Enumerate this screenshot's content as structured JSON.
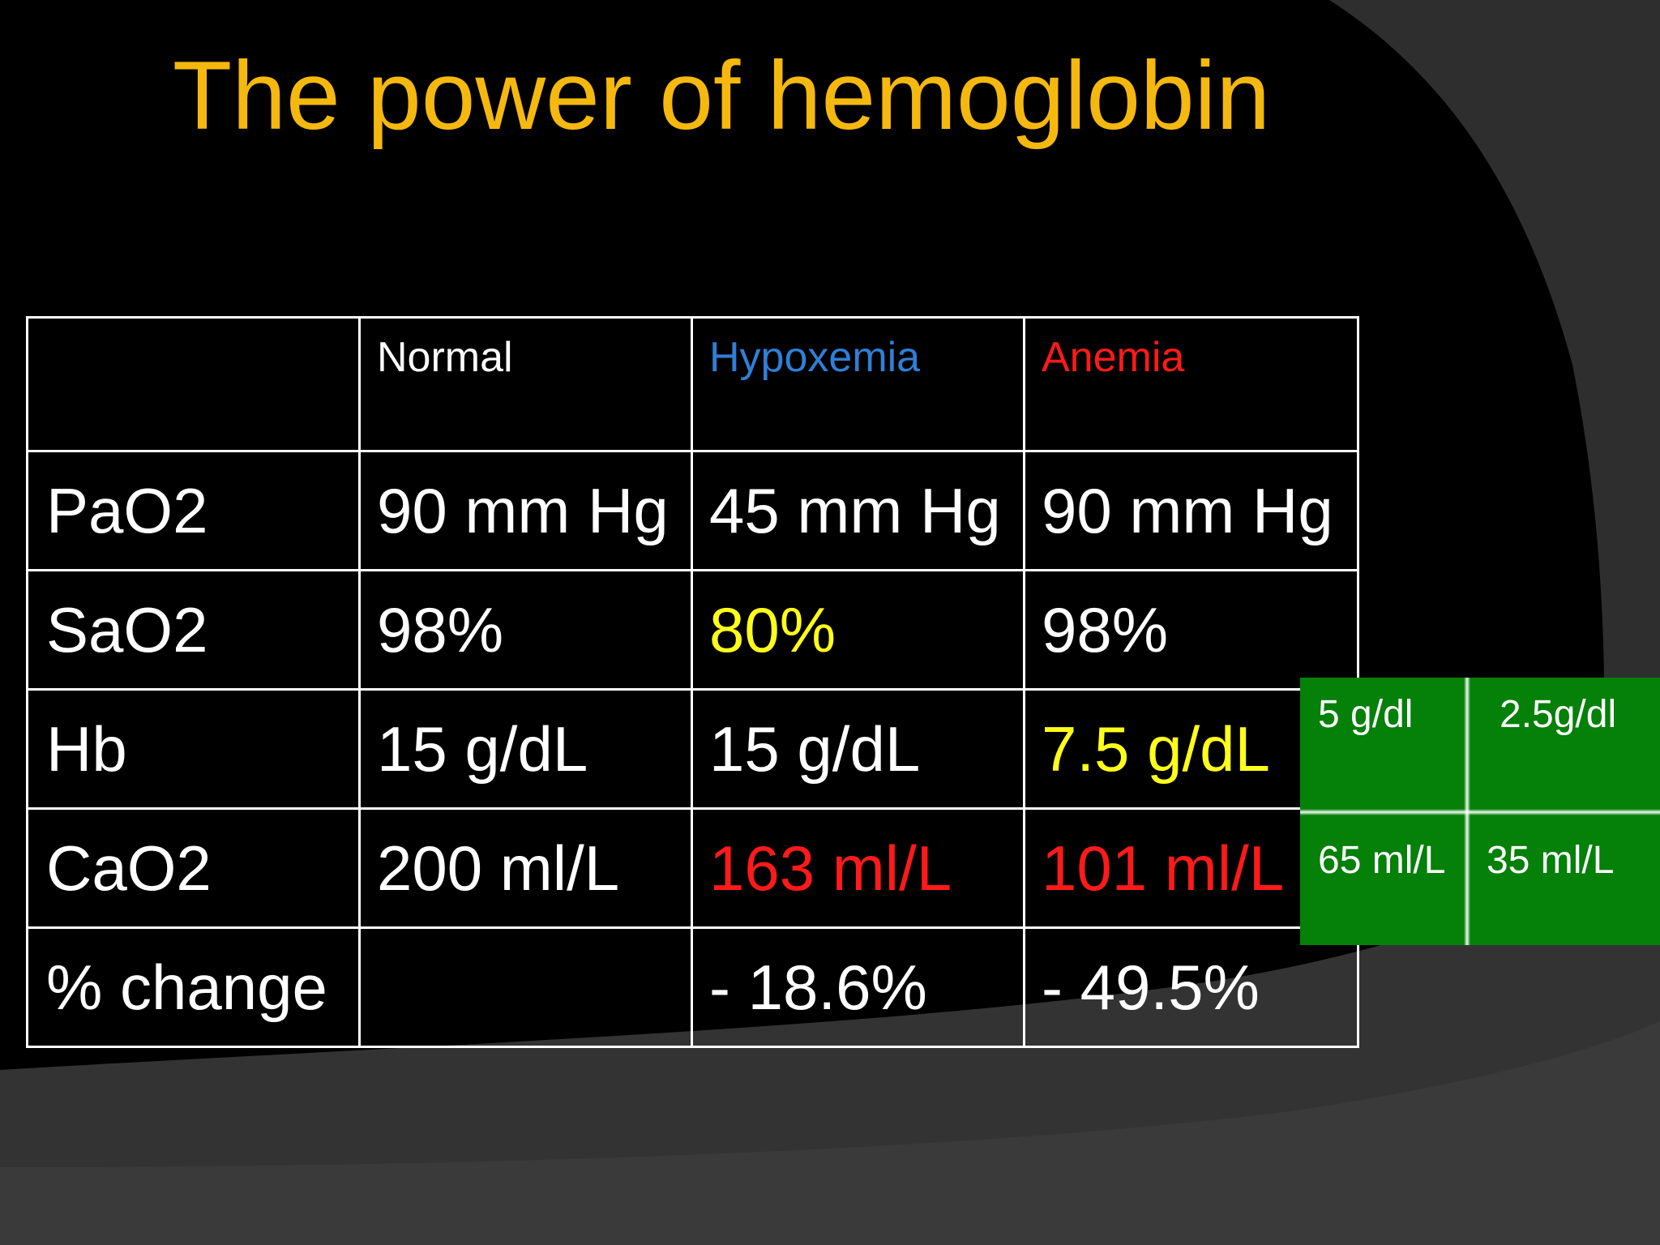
{
  "slide": {
    "title": "The power of hemoglobin"
  },
  "table": {
    "columns": [
      "",
      "Normal",
      "Hypoxemia",
      "Anemia"
    ],
    "rows": [
      {
        "label": "PaO2",
        "cells": [
          "90 mm Hg",
          "45 mm Hg",
          "90 mm Hg"
        ]
      },
      {
        "label": "SaO2",
        "cells": [
          "98%",
          "80%",
          "98%"
        ]
      },
      {
        "label": "Hb",
        "cells": [
          "15 g/dL",
          "15 g/dL",
          "7.5 g/dL"
        ]
      },
      {
        "label": "CaO2",
        "cells": [
          "200 ml/L",
          "163 ml/L",
          "101 ml/L"
        ]
      },
      {
        "label": "% change",
        "cells": [
          "",
          "- 18.6%",
          "- 49.5%"
        ]
      }
    ]
  },
  "overlay": {
    "top_left": "5 g/dl",
    "top_right": "2.5g/dl",
    "bottom_left": "65 ml/L",
    "bottom_right": "35 ml/L"
  },
  "colors": {
    "title": "#f5b80e",
    "hypoxemia": "#2f7fd6",
    "anemia": "#ff1a1a",
    "highlight_yellow": "#ffff1a",
    "overlay_green": "#058009"
  }
}
